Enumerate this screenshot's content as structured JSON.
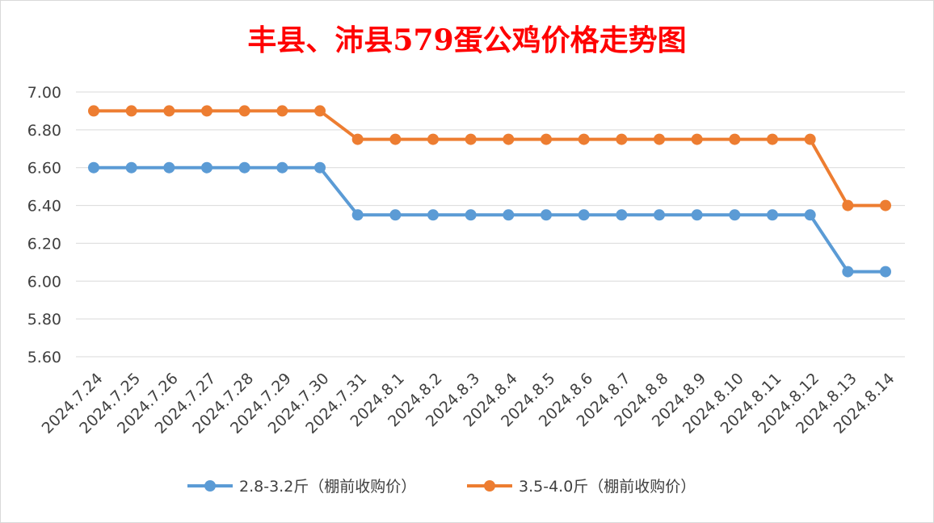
{
  "chart_data": {
    "type": "line",
    "title": "丰县、沛县579蛋公鸡价格走势图",
    "title_color": "#ff0000",
    "xlabel": "",
    "ylabel": "",
    "ylim": [
      5.6,
      7.0
    ],
    "yticks": [
      "7.00",
      "6.80",
      "6.60",
      "6.40",
      "6.20",
      "6.00",
      "5.80",
      "5.60"
    ],
    "ytick_values": [
      7.0,
      6.8,
      6.6,
      6.4,
      6.2,
      6.0,
      5.8,
      5.6
    ],
    "grid": true,
    "legend_position": "bottom",
    "categories": [
      "2024.7.24",
      "2024.7.25",
      "2024.7.26",
      "2024.7.27",
      "2024.7.28",
      "2024.7.29",
      "2024.7.30",
      "2024.7.31",
      "2024.8.1",
      "2024.8.2",
      "2024.8.3",
      "2024.8.4",
      "2024.8.5",
      "2024.8.6",
      "2024.8.7",
      "2024.8.8",
      "2024.8.9",
      "2024.8.10",
      "2024.8.11",
      "2024.8.12",
      "2024.8.13",
      "2024.8.14"
    ],
    "series": [
      {
        "name": "2.8-3.2斤（棚前收购价）",
        "color": "#5b9bd5",
        "values": [
          6.6,
          6.6,
          6.6,
          6.6,
          6.6,
          6.6,
          6.6,
          6.35,
          6.35,
          6.35,
          6.35,
          6.35,
          6.35,
          6.35,
          6.35,
          6.35,
          6.35,
          6.35,
          6.35,
          6.35,
          6.05,
          6.05
        ]
      },
      {
        "name": "3.5-4.0斤（棚前收购价）",
        "color": "#ed7d31",
        "values": [
          6.9,
          6.9,
          6.9,
          6.9,
          6.9,
          6.9,
          6.9,
          6.75,
          6.75,
          6.75,
          6.75,
          6.75,
          6.75,
          6.75,
          6.75,
          6.75,
          6.75,
          6.75,
          6.75,
          6.75,
          6.4,
          6.4
        ]
      }
    ]
  }
}
